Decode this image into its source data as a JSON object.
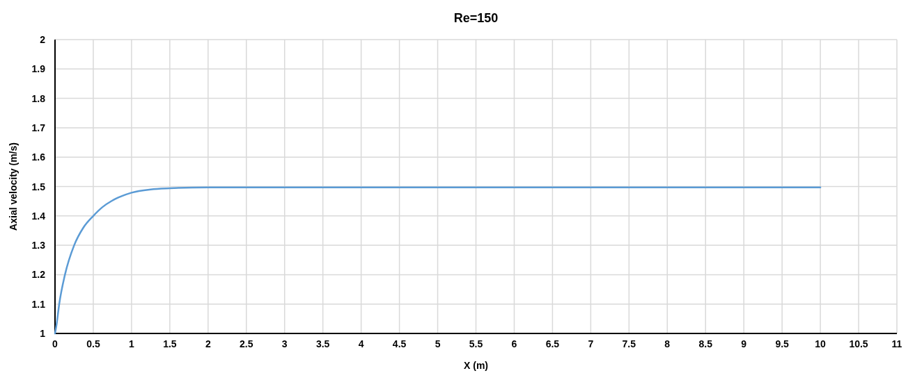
{
  "chart_data": {
    "type": "line",
    "title": "Re=150",
    "xlabel": "X (m)",
    "ylabel": "Axial velocity (m/s)",
    "xlim": [
      0,
      11
    ],
    "xticks": [
      0,
      0.5,
      1,
      1.5,
      2,
      2.5,
      3,
      3.5,
      4,
      4.5,
      5,
      5.5,
      6,
      6.5,
      7,
      7.5,
      8,
      8.5,
      9,
      9.5,
      10,
      10.5,
      11
    ],
    "ylim": [
      1,
      2
    ],
    "yticks": [
      1,
      1.1,
      1.2,
      1.3,
      1.4,
      1.5,
      1.6,
      1.7,
      1.8,
      1.9,
      2
    ],
    "grid": true,
    "series": [
      {
        "color": "#5b9bd5",
        "x": [
          0,
          0.02,
          0.055,
          0.13,
          0.25,
          0.37,
          0.5,
          0.62,
          0.74,
          0.87,
          1,
          1.25,
          1.5,
          2,
          3,
          4,
          5,
          6,
          7,
          8,
          9,
          10
        ],
        "values": [
          1,
          1.03,
          1.1,
          1.2,
          1.3,
          1.36,
          1.4,
          1.43,
          1.451,
          1.467,
          1.479,
          1.49,
          1.494,
          1.497,
          1.497,
          1.497,
          1.497,
          1.497,
          1.497,
          1.497,
          1.497,
          1.497
        ]
      }
    ]
  }
}
